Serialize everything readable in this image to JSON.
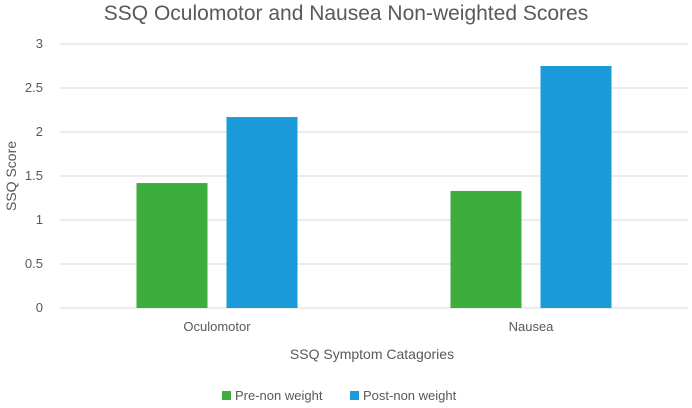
{
  "chart_data": {
    "type": "bar",
    "title": "SSQ Oculomotor and Nausea Non-weighted Scores",
    "xlabel": "SSQ Symptom Catagories",
    "ylabel": "SSQ Score",
    "categories": [
      "Oculomotor",
      "Nausea"
    ],
    "series": [
      {
        "name": "Pre-non weight",
        "values": [
          1.42,
          1.33
        ],
        "color": "#3dae3d"
      },
      {
        "name": "Post-non weight",
        "values": [
          2.17,
          2.75
        ],
        "color": "#1a9ad9"
      }
    ],
    "ylim": [
      0,
      3
    ],
    "yticks": [
      "0",
      "0.5",
      "1",
      "1.5",
      "2",
      "2.5",
      "3"
    ],
    "grid": true,
    "legend_position": "bottom"
  }
}
